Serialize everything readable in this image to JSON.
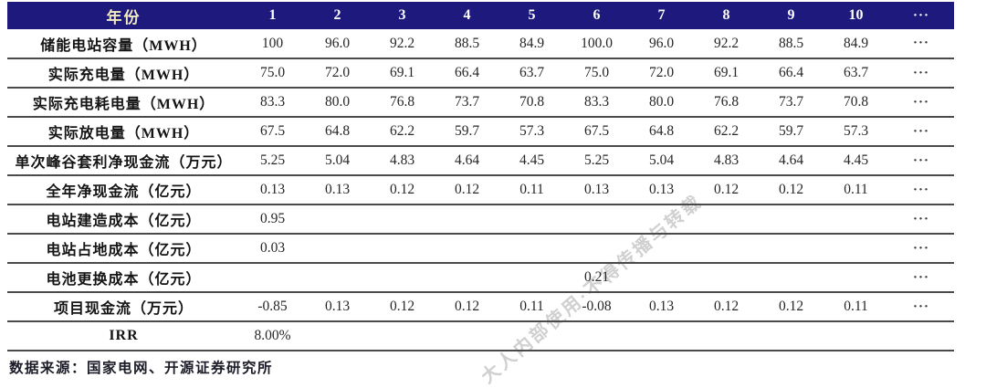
{
  "colors": {
    "header_bg": "#1e1a7d",
    "header_year_text": "#f3ecc0",
    "header_number_text": "#ffffff",
    "row_separator": "#4a4a4a",
    "label_text": "#141414",
    "value_text": "#262626",
    "footer_text": "#1c1c28",
    "watermark_text": "#aaaaaa"
  },
  "table": {
    "header": {
      "label": "年份",
      "columns": [
        "1",
        "2",
        "3",
        "4",
        "5",
        "6",
        "7",
        "8",
        "9",
        "10"
      ],
      "ellipsis": "···"
    },
    "rows": [
      {
        "label": "储能电站容量（MWH）",
        "values": [
          "100",
          "96.0",
          "92.2",
          "88.5",
          "84.9",
          "100.0",
          "96.0",
          "92.2",
          "88.5",
          "84.9"
        ],
        "ellipsis": "···"
      },
      {
        "label": "实际充电量（MWH）",
        "values": [
          "75.0",
          "72.0",
          "69.1",
          "66.4",
          "63.7",
          "75.0",
          "72.0",
          "69.1",
          "66.4",
          "63.7"
        ],
        "ellipsis": "···"
      },
      {
        "label": "实际充电耗电量（MWH）",
        "values": [
          "83.3",
          "80.0",
          "76.8",
          "73.7",
          "70.8",
          "83.3",
          "80.0",
          "76.8",
          "73.7",
          "70.8"
        ],
        "ellipsis": "···"
      },
      {
        "label": "实际放电量（MWH）",
        "values": [
          "67.5",
          "64.8",
          "62.2",
          "59.7",
          "57.3",
          "67.5",
          "64.8",
          "62.2",
          "59.7",
          "57.3"
        ],
        "ellipsis": "···"
      },
      {
        "label": "单次峰谷套利净现金流（万元）",
        "values": [
          "5.25",
          "5.04",
          "4.83",
          "4.64",
          "4.45",
          "5.25",
          "5.04",
          "4.83",
          "4.64",
          "4.45"
        ],
        "ellipsis": "···"
      },
      {
        "label": "全年净现金流（亿元）",
        "values": [
          "0.13",
          "0.13",
          "0.12",
          "0.12",
          "0.11",
          "0.13",
          "0.13",
          "0.12",
          "0.12",
          "0.11"
        ],
        "ellipsis": "···"
      },
      {
        "label": "电站建造成本（亿元）",
        "values": [
          "0.95",
          "",
          "",
          "",
          "",
          "",
          "",
          "",
          "",
          ""
        ],
        "ellipsis": "···"
      },
      {
        "label": "电站占地成本（亿元）",
        "values": [
          "0.03",
          "",
          "",
          "",
          "",
          "",
          "",
          "",
          "",
          ""
        ],
        "ellipsis": "···"
      },
      {
        "label": "电池更换成本（亿元）",
        "values": [
          "",
          "",
          "",
          "",
          "",
          "0.21",
          "",
          "",
          "",
          ""
        ],
        "ellipsis": "···"
      },
      {
        "label": "项目现金流（万元）",
        "values": [
          "-0.85",
          "0.13",
          "0.12",
          "0.12",
          "0.11",
          "-0.08",
          "0.13",
          "0.12",
          "0.12",
          "0.11"
        ],
        "ellipsis": "···"
      },
      {
        "label": "IRR",
        "values": [
          "8.00%",
          "",
          "",
          "",
          "",
          "",
          "",
          "",
          "",
          ""
        ],
        "ellipsis": ""
      }
    ]
  },
  "footer": {
    "source": "数据来源：国家电网、开源证券研究所"
  },
  "watermark": {
    "text": "大人内部使用·不得传播与转载"
  }
}
